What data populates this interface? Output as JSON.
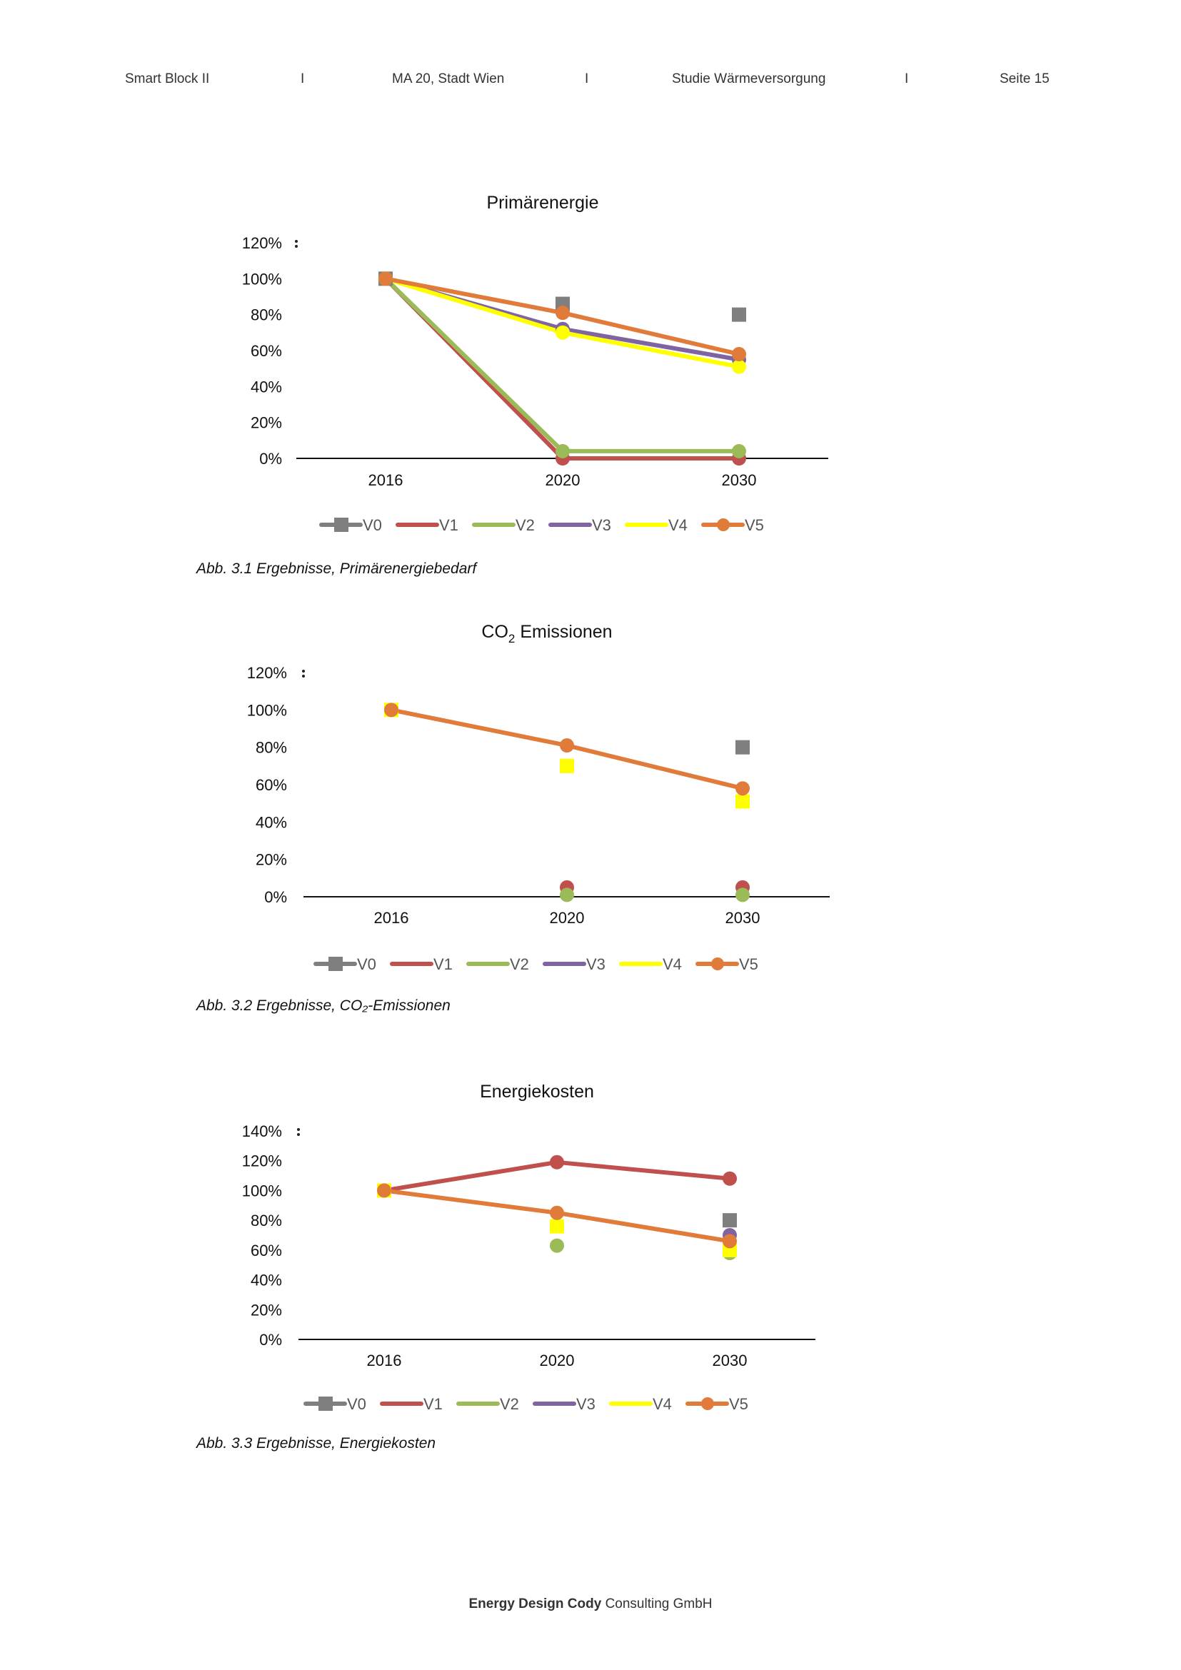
{
  "header": {
    "project": "Smart Block II",
    "sep1": "I",
    "client": "MA 20, Stadt Wien",
    "sep2": "I",
    "study": "Studie Wärmeversorgung",
    "sep3": "I",
    "page": "Seite 15"
  },
  "captions": [
    "Abb. 3.1 Ergebnisse, Primärenergiebedarf",
    "Abb. 3.2 Ergebnisse, CO₂-Emissionen",
    "Abb. 3.3 Ergebnisse, Energiekosten"
  ],
  "footer": {
    "bold": "Energy Design Cody",
    "rest": " Consulting GmbH"
  },
  "legend": [
    {
      "name": "V0",
      "color": "#7f7f7f",
      "marker": "square"
    },
    {
      "name": "V1",
      "color": "#c0504d",
      "marker": "none"
    },
    {
      "name": "V2",
      "color": "#9bbb59",
      "marker": "none"
    },
    {
      "name": "V3",
      "color": "#8064a2",
      "marker": "none"
    },
    {
      "name": "V4",
      "color": "#ffff00",
      "marker": "none"
    },
    {
      "name": "V5",
      "color": "#e07b39",
      "marker": "circle"
    }
  ],
  "chart_data": [
    {
      "type": "line",
      "title": "Primärenergie",
      "categories": [
        "2016",
        "2020",
        "2030"
      ],
      "ylim": [
        0,
        120
      ],
      "yticks": [
        "0%",
        "20%",
        "40%",
        "60%",
        "80%",
        "100%",
        "120%"
      ],
      "legend_position": "bottom",
      "series": [
        {
          "name": "V0",
          "color": "#7f7f7f",
          "line": false,
          "marker": "square",
          "values": [
            100,
            86,
            80
          ]
        },
        {
          "name": "V1",
          "color": "#c0504d",
          "line": true,
          "marker": "circle",
          "values": [
            100,
            0,
            0
          ]
        },
        {
          "name": "V2",
          "color": "#9bbb59",
          "line": true,
          "marker": "circle",
          "values": [
            100,
            4,
            4
          ]
        },
        {
          "name": "V3",
          "color": "#8064a2",
          "line": true,
          "marker": "circle",
          "values": [
            100,
            72,
            55
          ]
        },
        {
          "name": "V4",
          "color": "#ffff00",
          "line": true,
          "marker": "circle",
          "values": [
            100,
            70,
            51
          ]
        },
        {
          "name": "V5",
          "color": "#e07b39",
          "line": true,
          "marker": "circle",
          "values": [
            100,
            81,
            58
          ]
        }
      ]
    },
    {
      "type": "line",
      "title": "CO",
      "title_sub": "2",
      "title_rest": " Emissionen",
      "categories": [
        "2016",
        "2020",
        "2030"
      ],
      "ylim": [
        0,
        120
      ],
      "yticks": [
        "0%",
        "20%",
        "40%",
        "60%",
        "80%",
        "100%",
        "120%"
      ],
      "legend_position": "bottom",
      "series": [
        {
          "name": "V0",
          "color": "#7f7f7f",
          "line": false,
          "marker": "square",
          "values": [
            null,
            null,
            80
          ]
        },
        {
          "name": "V1",
          "color": "#c0504d",
          "line": false,
          "marker": "circle",
          "values": [
            null,
            5,
            5
          ]
        },
        {
          "name": "V2",
          "color": "#9bbb59",
          "line": false,
          "marker": "circle",
          "values": [
            null,
            1,
            1
          ]
        },
        {
          "name": "V3",
          "color": "#8064a2",
          "line": false,
          "marker": "circle",
          "values": [
            null,
            null,
            null
          ]
        },
        {
          "name": "V4",
          "color": "#ffff00",
          "line": false,
          "marker": "square",
          "values": [
            100,
            70,
            51
          ]
        },
        {
          "name": "V5",
          "color": "#e07b39",
          "line": true,
          "marker": "circle",
          "values": [
            100,
            81,
            58
          ]
        }
      ]
    },
    {
      "type": "line",
      "title": "Energiekosten",
      "categories": [
        "2016",
        "2020",
        "2030"
      ],
      "ylim": [
        0,
        140
      ],
      "yticks": [
        "0%",
        "20%",
        "40%",
        "60%",
        "80%",
        "100%",
        "120%",
        "140%"
      ],
      "legend_position": "bottom",
      "series": [
        {
          "name": "V0",
          "color": "#7f7f7f",
          "line": false,
          "marker": "square",
          "values": [
            null,
            null,
            80
          ]
        },
        {
          "name": "V1",
          "color": "#c0504d",
          "line": true,
          "marker": "circle",
          "values": [
            100,
            119,
            108
          ]
        },
        {
          "name": "V2",
          "color": "#9bbb59",
          "line": false,
          "marker": "circle",
          "values": [
            null,
            63,
            58
          ]
        },
        {
          "name": "V3",
          "color": "#8064a2",
          "line": false,
          "marker": "circle",
          "values": [
            null,
            null,
            70
          ]
        },
        {
          "name": "V4",
          "color": "#ffff00",
          "line": false,
          "marker": "square",
          "values": [
            100,
            76,
            60
          ]
        },
        {
          "name": "V5",
          "color": "#e07b39",
          "line": true,
          "marker": "circle",
          "values": [
            100,
            85,
            66
          ]
        }
      ]
    }
  ]
}
